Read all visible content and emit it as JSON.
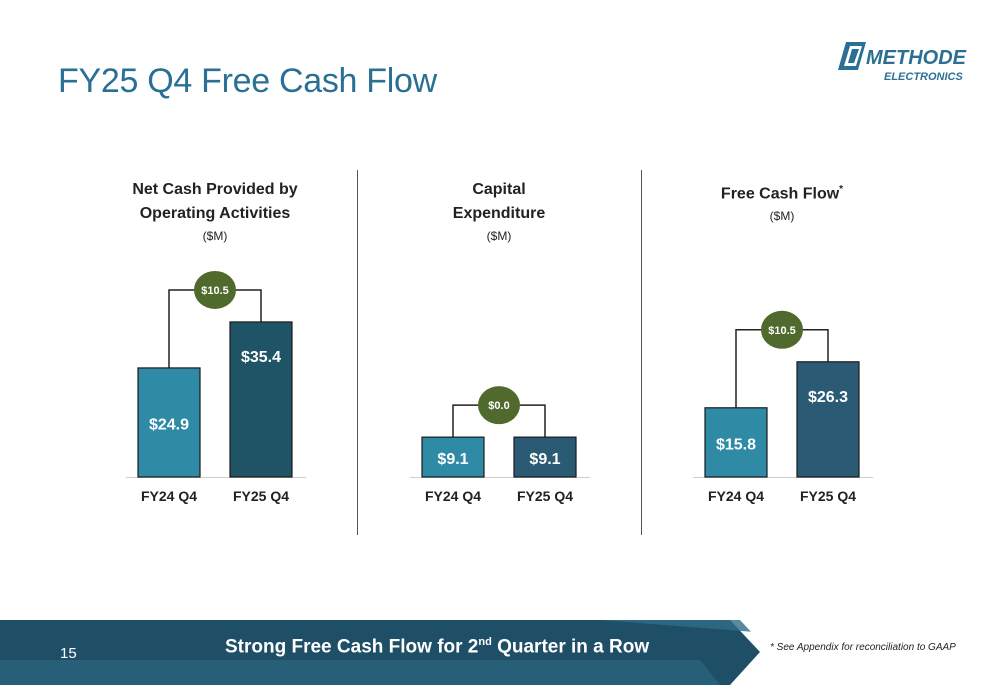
{
  "slide": {
    "title": "FY25 Q4 Free Cash Flow",
    "logo_text_top": "METHODE",
    "logo_text_bottom": "ELECTRONICS",
    "page_number": "15",
    "tagline_pre": "Strong Free Cash Flow for 2",
    "tagline_sup": "nd",
    "tagline_post": " Quarter in a Row",
    "footnote": "* See Appendix for reconciliation to GAAP"
  },
  "colors": {
    "title": "#2b6f94",
    "bar_left": "#2e8aa5",
    "bar_right": "#1f5366",
    "bar_right_alt": "#2a5a74",
    "delta": "#4f6a2c",
    "footer_dark": "#1f4f66",
    "footer_mid": "#2f6d86"
  },
  "chart_data": [
    {
      "type": "bar",
      "title_line1": "Net Cash Provided by",
      "title_line2": "Operating Activities",
      "unit": "($M)",
      "categories": [
        "FY24 Q4",
        "FY25 Q4"
      ],
      "values": [
        24.9,
        35.4
      ],
      "value_labels": [
        "$24.9",
        "$35.4"
      ],
      "delta_label": "$10.5"
    },
    {
      "type": "bar",
      "title_line1": "Capital",
      "title_line2": "Expenditure",
      "unit": "($M)",
      "categories": [
        "FY24 Q4",
        "FY25 Q4"
      ],
      "values": [
        9.1,
        9.1
      ],
      "value_labels": [
        "$9.1",
        "$9.1"
      ],
      "delta_label": "$0.0"
    },
    {
      "type": "bar",
      "title_line1": "Free Cash Flow",
      "title_sup": "*",
      "unit": "($M)",
      "categories": [
        "FY24 Q4",
        "FY25 Q4"
      ],
      "values": [
        15.8,
        26.3
      ],
      "value_labels": [
        "$15.8",
        "$26.3"
      ],
      "delta_label": "$10.5"
    }
  ]
}
